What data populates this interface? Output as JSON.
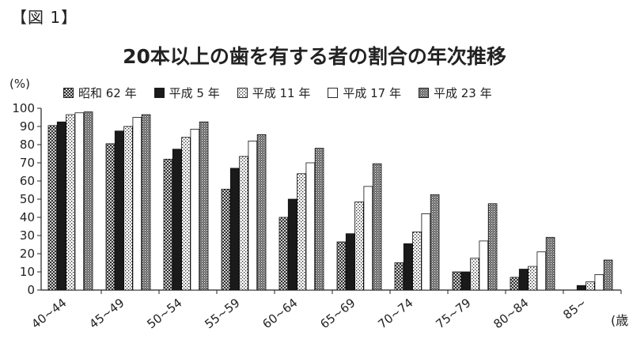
{
  "figure_label": "【図 1】",
  "chart_data": {
    "type": "bar",
    "title": "20本以上の歯を有する者の割合の年次推移",
    "ylabel": "(%)",
    "xlabel": "(歳",
    "ylim": [
      0,
      100
    ],
    "yticks": [
      0,
      10,
      20,
      30,
      40,
      50,
      60,
      70,
      80,
      90,
      100
    ],
    "grid": false,
    "legend_position": "top",
    "categories": [
      "40~44",
      "45~49",
      "50~54",
      "55~59",
      "60~64",
      "65~69",
      "70~74",
      "75~79",
      "80~84",
      "85~"
    ],
    "series": [
      {
        "name": "昭和 62 年",
        "pattern": "crosshatch",
        "values": [
          90.5,
          80.5,
          72,
          55.5,
          40,
          26.5,
          15,
          10,
          7,
          null
        ]
      },
      {
        "name": "平成 5 年",
        "pattern": "solid",
        "values": [
          92.5,
          87.5,
          77.5,
          67,
          50,
          31,
          25.5,
          10,
          11.5,
          2.5
        ]
      },
      {
        "name": "平成 11 年",
        "pattern": "dots",
        "values": [
          96.5,
          90,
          84,
          73.5,
          64,
          48.5,
          32,
          17.5,
          13,
          4.5
        ]
      },
      {
        "name": "平成 17 年",
        "pattern": "white",
        "values": [
          97.5,
          95,
          88.5,
          82,
          70,
          57,
          42,
          27,
          21,
          8.5
        ]
      },
      {
        "name": "平成 23 年",
        "pattern": "denseDots",
        "values": [
          98,
          96.5,
          92.5,
          85.5,
          78,
          69.5,
          52.5,
          47.5,
          29,
          16.5
        ]
      }
    ],
    "colors": {
      "bar_fill": "#1a1a1a",
      "axis": "#222222",
      "background": "#ffffff"
    }
  }
}
